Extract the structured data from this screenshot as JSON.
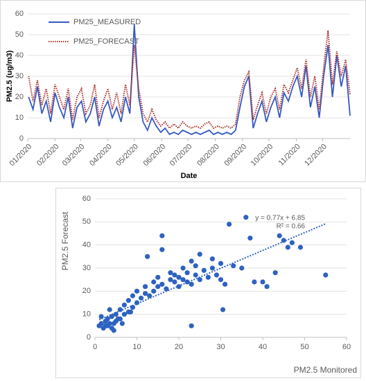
{
  "chart_data": [
    {
      "type": "line",
      "y_label": "PM2.5 (ug/m3)",
      "x_label": "Date",
      "x": [
        1,
        6,
        11,
        16,
        21,
        26,
        31,
        36,
        41,
        46,
        51,
        56,
        61,
        66,
        71,
        76,
        81,
        86,
        91,
        96,
        101,
        106,
        111,
        116,
        121,
        126,
        131,
        136,
        141,
        146,
        151,
        156,
        161,
        166,
        171,
        176,
        181,
        186,
        191,
        196,
        201,
        206,
        211,
        216,
        221,
        226,
        231,
        236,
        241,
        246,
        251,
        256,
        261,
        266,
        271,
        276,
        281,
        286,
        291,
        296,
        301,
        306,
        311,
        316,
        321,
        326,
        331,
        336,
        341,
        346,
        351,
        356,
        361,
        366
      ],
      "xlim": [
        0,
        366
      ],
      "xticks": [
        {
          "value": 0,
          "label": "01/2020"
        },
        {
          "value": 31,
          "label": "02/2020"
        },
        {
          "value": 60,
          "label": "03/2020"
        },
        {
          "value": 91,
          "label": "04/2020"
        },
        {
          "value": 121,
          "label": "05/2020"
        },
        {
          "value": 152,
          "label": "06/2020"
        },
        {
          "value": 182,
          "label": "07/2020"
        },
        {
          "value": 213,
          "label": "08/2020"
        },
        {
          "value": 244,
          "label": "09/2020"
        },
        {
          "value": 274,
          "label": "10/2020"
        },
        {
          "value": 305,
          "label": "11/2020"
        },
        {
          "value": 335,
          "label": "12/2020"
        }
      ],
      "ylim": [
        0,
        60
      ],
      "yticks": [
        0,
        10,
        20,
        30,
        40,
        50,
        60
      ],
      "series": [
        {
          "name": "PM25_MEASURED",
          "color": "#3559c0",
          "style": "solid",
          "values": [
            20,
            14,
            25,
            12,
            18,
            8,
            22,
            15,
            10,
            20,
            5,
            15,
            18,
            8,
            12,
            20,
            6,
            14,
            18,
            10,
            15,
            8,
            20,
            12,
            55,
            20,
            8,
            4,
            10,
            6,
            3,
            5,
            2,
            3,
            2,
            4,
            3,
            2,
            3,
            2,
            3,
            4,
            2,
            3,
            2,
            3,
            2,
            4,
            15,
            25,
            30,
            5,
            12,
            18,
            8,
            15,
            20,
            10,
            22,
            18,
            25,
            30,
            20,
            35,
            15,
            25,
            10,
            30,
            45,
            20,
            40,
            25,
            35,
            11
          ]
        },
        {
          "name": "PM25_FORECAST",
          "color": "#a9312a",
          "style": "dotted",
          "values": [
            30,
            18,
            28,
            16,
            24,
            12,
            26,
            20,
            14,
            24,
            9,
            20,
            24,
            12,
            16,
            26,
            10,
            18,
            24,
            14,
            22,
            12,
            26,
            16,
            45,
            24,
            12,
            8,
            14,
            9,
            6,
            8,
            5,
            7,
            5,
            8,
            6,
            5,
            6,
            5,
            7,
            8,
            5,
            6,
            5,
            6,
            5,
            7,
            20,
            28,
            32,
            9,
            16,
            22,
            12,
            20,
            24,
            14,
            26,
            22,
            28,
            34,
            24,
            38,
            20,
            30,
            14,
            34,
            52,
            26,
            42,
            30,
            38,
            21
          ]
        }
      ]
    },
    {
      "type": "scatter",
      "y_label": "PM2.5 Forecast",
      "x_label": "PM2.5 Monitored",
      "color": "#2e62c0",
      "xlim": [
        0,
        60
      ],
      "xticks": [
        0,
        10,
        20,
        30,
        40,
        50,
        60
      ],
      "ylim": [
        0,
        60
      ],
      "yticks": [
        0,
        10,
        20,
        30,
        40,
        50,
        60
      ],
      "x": [
        1,
        1.5,
        2,
        2.5,
        3,
        3,
        3.5,
        4,
        4,
        4.5,
        5,
        5,
        6,
        6,
        7,
        7,
        8,
        8,
        9,
        9,
        10,
        10,
        11,
        12,
        12,
        13,
        14,
        14,
        15,
        15,
        16,
        16,
        17,
        18,
        18,
        19,
        19,
        20,
        20,
        21,
        21,
        22,
        22,
        23,
        23,
        24,
        24,
        25,
        25,
        26,
        27,
        28,
        28,
        29,
        30,
        30,
        31,
        32,
        33,
        35,
        36,
        37,
        38,
        40,
        41,
        43,
        44,
        45,
        46,
        47,
        49,
        55,
        1.5,
        2.5,
        3.5,
        4.5,
        5.5,
        6.5,
        8.5,
        12.5,
        16,
        23,
        30.5
      ],
      "y": [
        5,
        6,
        4,
        7,
        5,
        8,
        6,
        4,
        9,
        6,
        7,
        10,
        8,
        12,
        10,
        14,
        11,
        16,
        13,
        18,
        15,
        20,
        17,
        19,
        22,
        18,
        24,
        20,
        26,
        22,
        23,
        44,
        21,
        25,
        28,
        24,
        27,
        22,
        26,
        25,
        30,
        24,
        28,
        33,
        23,
        27,
        31,
        25,
        36,
        29,
        26,
        34,
        30,
        27,
        25,
        32,
        23,
        49,
        31,
        30,
        52,
        43,
        24,
        24,
        22,
        28,
        44,
        42,
        39,
        41,
        39,
        27,
        9,
        5,
        12,
        3,
        8,
        6,
        11,
        35,
        38,
        5,
        12
      ],
      "trendline": {
        "slope": 0.77,
        "intercept": 6.85,
        "color": "#2e62c0"
      },
      "annotations": [
        "y = 0.77x + 6.85",
        "R² = 0.66"
      ]
    }
  ]
}
